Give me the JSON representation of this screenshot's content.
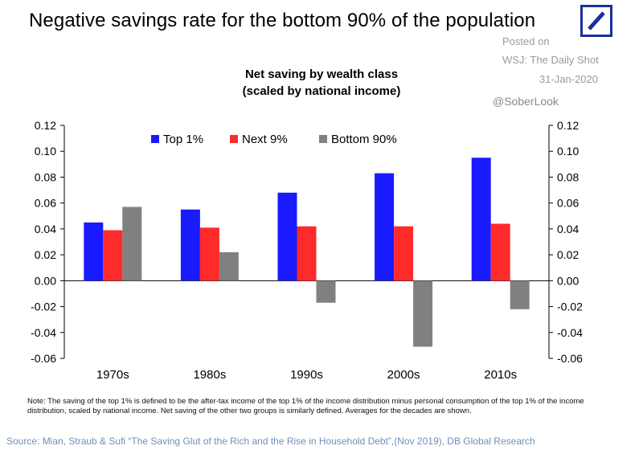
{
  "header": {
    "title": "Negative savings rate for the bottom 90% of the population",
    "posted_on": "Posted on",
    "posted_source": "WSJ: The Daily Shot",
    "posted_date": "31-Jan-2020",
    "handle": "@SoberLook",
    "logo_color": "#1a2f9e"
  },
  "chart_data": {
    "type": "bar",
    "title_line1": "Net saving by wealth class",
    "title_line2": "(scaled by national income)",
    "categories": [
      "1970s",
      "1980s",
      "1990s",
      "2000s",
      "2010s"
    ],
    "series": [
      {
        "name": "Top 1%",
        "color": "#1a1aff",
        "values": [
          0.045,
          0.055,
          0.068,
          0.083,
          0.095
        ]
      },
      {
        "name": "Next 9%",
        "color": "#ff2a2a",
        "values": [
          0.039,
          0.041,
          0.042,
          0.042,
          0.044
        ]
      },
      {
        "name": "Bottom 90%",
        "color": "#808080",
        "values": [
          0.057,
          0.022,
          -0.017,
          -0.051,
          -0.022
        ]
      }
    ],
    "ylim": [
      -0.06,
      0.12
    ],
    "yticks": [
      "0.12",
      "0.10",
      "0.08",
      "0.06",
      "0.04",
      "0.02",
      "0.00",
      "-0.02",
      "-0.04",
      "-0.06"
    ],
    "ytick_values": [
      0.12,
      0.1,
      0.08,
      0.06,
      0.04,
      0.02,
      0.0,
      -0.02,
      -0.04,
      -0.06
    ],
    "legend_position": "top",
    "grid": false,
    "secondary_axis": true
  },
  "footer": {
    "note": "Note: The saving of the top 1% is defined to be the after-tax income of the top 1% of the income distribution minus personal consumption of the top 1% of the income distribution, scaled by national income. Net saving of the other two groups is similarly defined. Averages for the decades are shown.",
    "source": "Source: Mian, Straub & Sufi “The Saving Glut of the Rich and the Rise in Household Debt”,(Nov 2019), DB Global Research"
  }
}
